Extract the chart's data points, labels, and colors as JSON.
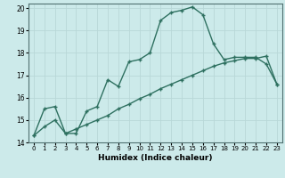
{
  "xlabel": "Humidex (Indice chaleur)",
  "bg_color": "#cceaea",
  "grid_color": "#b8d8d8",
  "line_color": "#2e7060",
  "xlim": [
    0,
    23
  ],
  "ylim": [
    14,
    20.2
  ],
  "xticks": [
    0,
    1,
    2,
    3,
    4,
    5,
    6,
    7,
    8,
    9,
    10,
    11,
    12,
    13,
    14,
    15,
    16,
    17,
    18,
    19,
    20,
    21,
    22,
    23
  ],
  "yticks": [
    14,
    15,
    16,
    17,
    18,
    19,
    20
  ],
  "upper_x": [
    0,
    1,
    2,
    3,
    4,
    5,
    6,
    7,
    8,
    9,
    10,
    11,
    12,
    13,
    14,
    15,
    16,
    17,
    18,
    19,
    20,
    21,
    22,
    23
  ],
  "upper_y": [
    14.3,
    15.5,
    15.6,
    14.4,
    14.4,
    15.4,
    15.6,
    16.8,
    16.5,
    17.6,
    17.7,
    18.0,
    19.45,
    19.8,
    19.9,
    20.05,
    19.7,
    18.4,
    17.7,
    17.8,
    17.8,
    17.8,
    17.5,
    16.6
  ],
  "lower_x": [
    0,
    1,
    2,
    3,
    4,
    5,
    6,
    7,
    8,
    9,
    10,
    11,
    12,
    13,
    14,
    15,
    16,
    17,
    18,
    19,
    20,
    21,
    22,
    23
  ],
  "lower_y": [
    14.3,
    14.7,
    15.0,
    14.4,
    14.6,
    14.8,
    15.0,
    15.2,
    15.5,
    15.7,
    15.95,
    16.15,
    16.4,
    16.6,
    16.8,
    17.0,
    17.2,
    17.4,
    17.55,
    17.65,
    17.75,
    17.75,
    17.85,
    16.6
  ]
}
